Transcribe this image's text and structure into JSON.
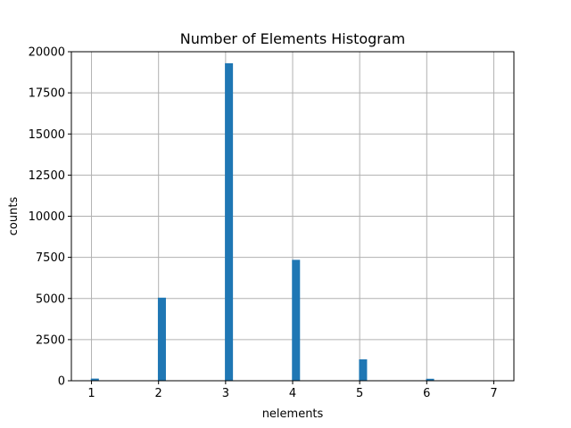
{
  "chart_data": {
    "type": "bar",
    "title": "Number of Elements Histogram",
    "xlabel": "nelements",
    "ylabel": "counts",
    "x": [
      1,
      2,
      3,
      4,
      5,
      6
    ],
    "values": [
      130,
      5050,
      19300,
      7350,
      1300,
      120
    ],
    "xlim": [
      0.7,
      7.3
    ],
    "ylim": [
      0,
      20000
    ],
    "xticks": [
      "1",
      "2",
      "3",
      "4",
      "5",
      "6",
      "7"
    ],
    "yticks": [
      "0",
      "2500",
      "5000",
      "7500",
      "10000",
      "12500",
      "15000",
      "17500",
      "20000"
    ],
    "grid": true,
    "bar_color": "#1f77b4",
    "grid_color": "#b0b0b0"
  }
}
